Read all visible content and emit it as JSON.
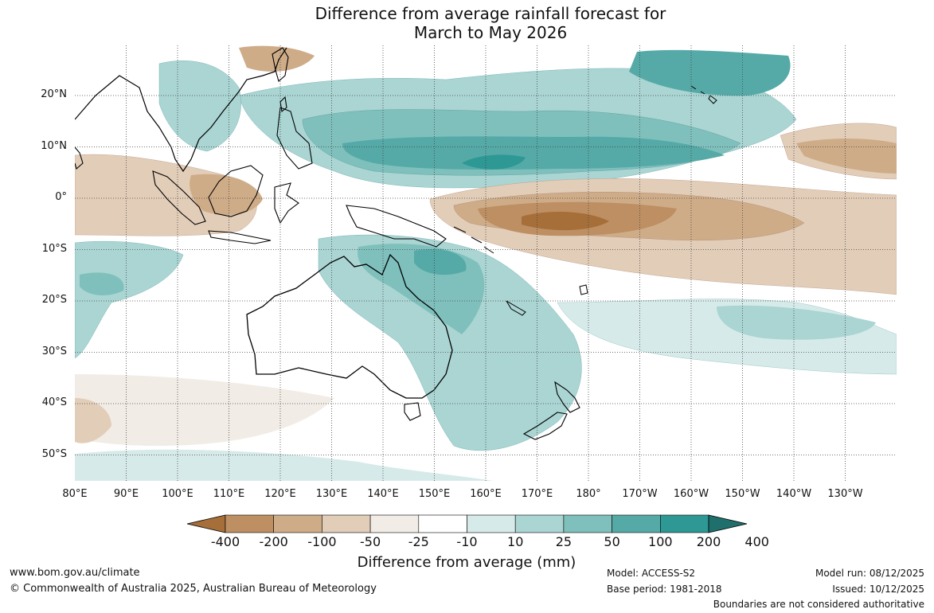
{
  "title": {
    "line1": "Difference from average rainfall forecast for",
    "line2": "March to May 2026"
  },
  "map": {
    "latitudes": [
      "20°N",
      "10°N",
      "0°",
      "10°S",
      "20°S",
      "30°S",
      "40°S",
      "50°S"
    ],
    "longitudes": [
      "80°E",
      "90°E",
      "100°E",
      "110°E",
      "120°E",
      "130°E",
      "140°E",
      "150°E",
      "160°E",
      "170°E",
      "180°",
      "170°W",
      "160°W",
      "150°W",
      "140°W",
      "130°W"
    ]
  },
  "legend": {
    "title": "Difference from average (mm)",
    "labels": [
      "-400",
      "-200",
      "-100",
      "-50",
      "-25",
      "-10",
      "10",
      "25",
      "50",
      "100",
      "200",
      "400"
    ],
    "colors": [
      "#a66e39",
      "#bd8f62",
      "#cfac88",
      "#e2cdb8",
      "#f2ece6",
      "#ffffff",
      "#d7eaea",
      "#aad5d3",
      "#7fc0bd",
      "#55aaa7",
      "#2e9894",
      "#1f6f6c"
    ]
  },
  "footer": {
    "url": "www.bom.gov.au/climate",
    "copyright": "© Commonwealth of Australia 2025, Australian Bureau of Meteorology",
    "model": "Model: ACCESS-S2",
    "base_period": "Base period: 1981-2018",
    "model_run": "Model run: 08/12/2025",
    "issued": "Issued: 10/12/2025",
    "disclaimer": "Boundaries are not considered authoritative"
  }
}
